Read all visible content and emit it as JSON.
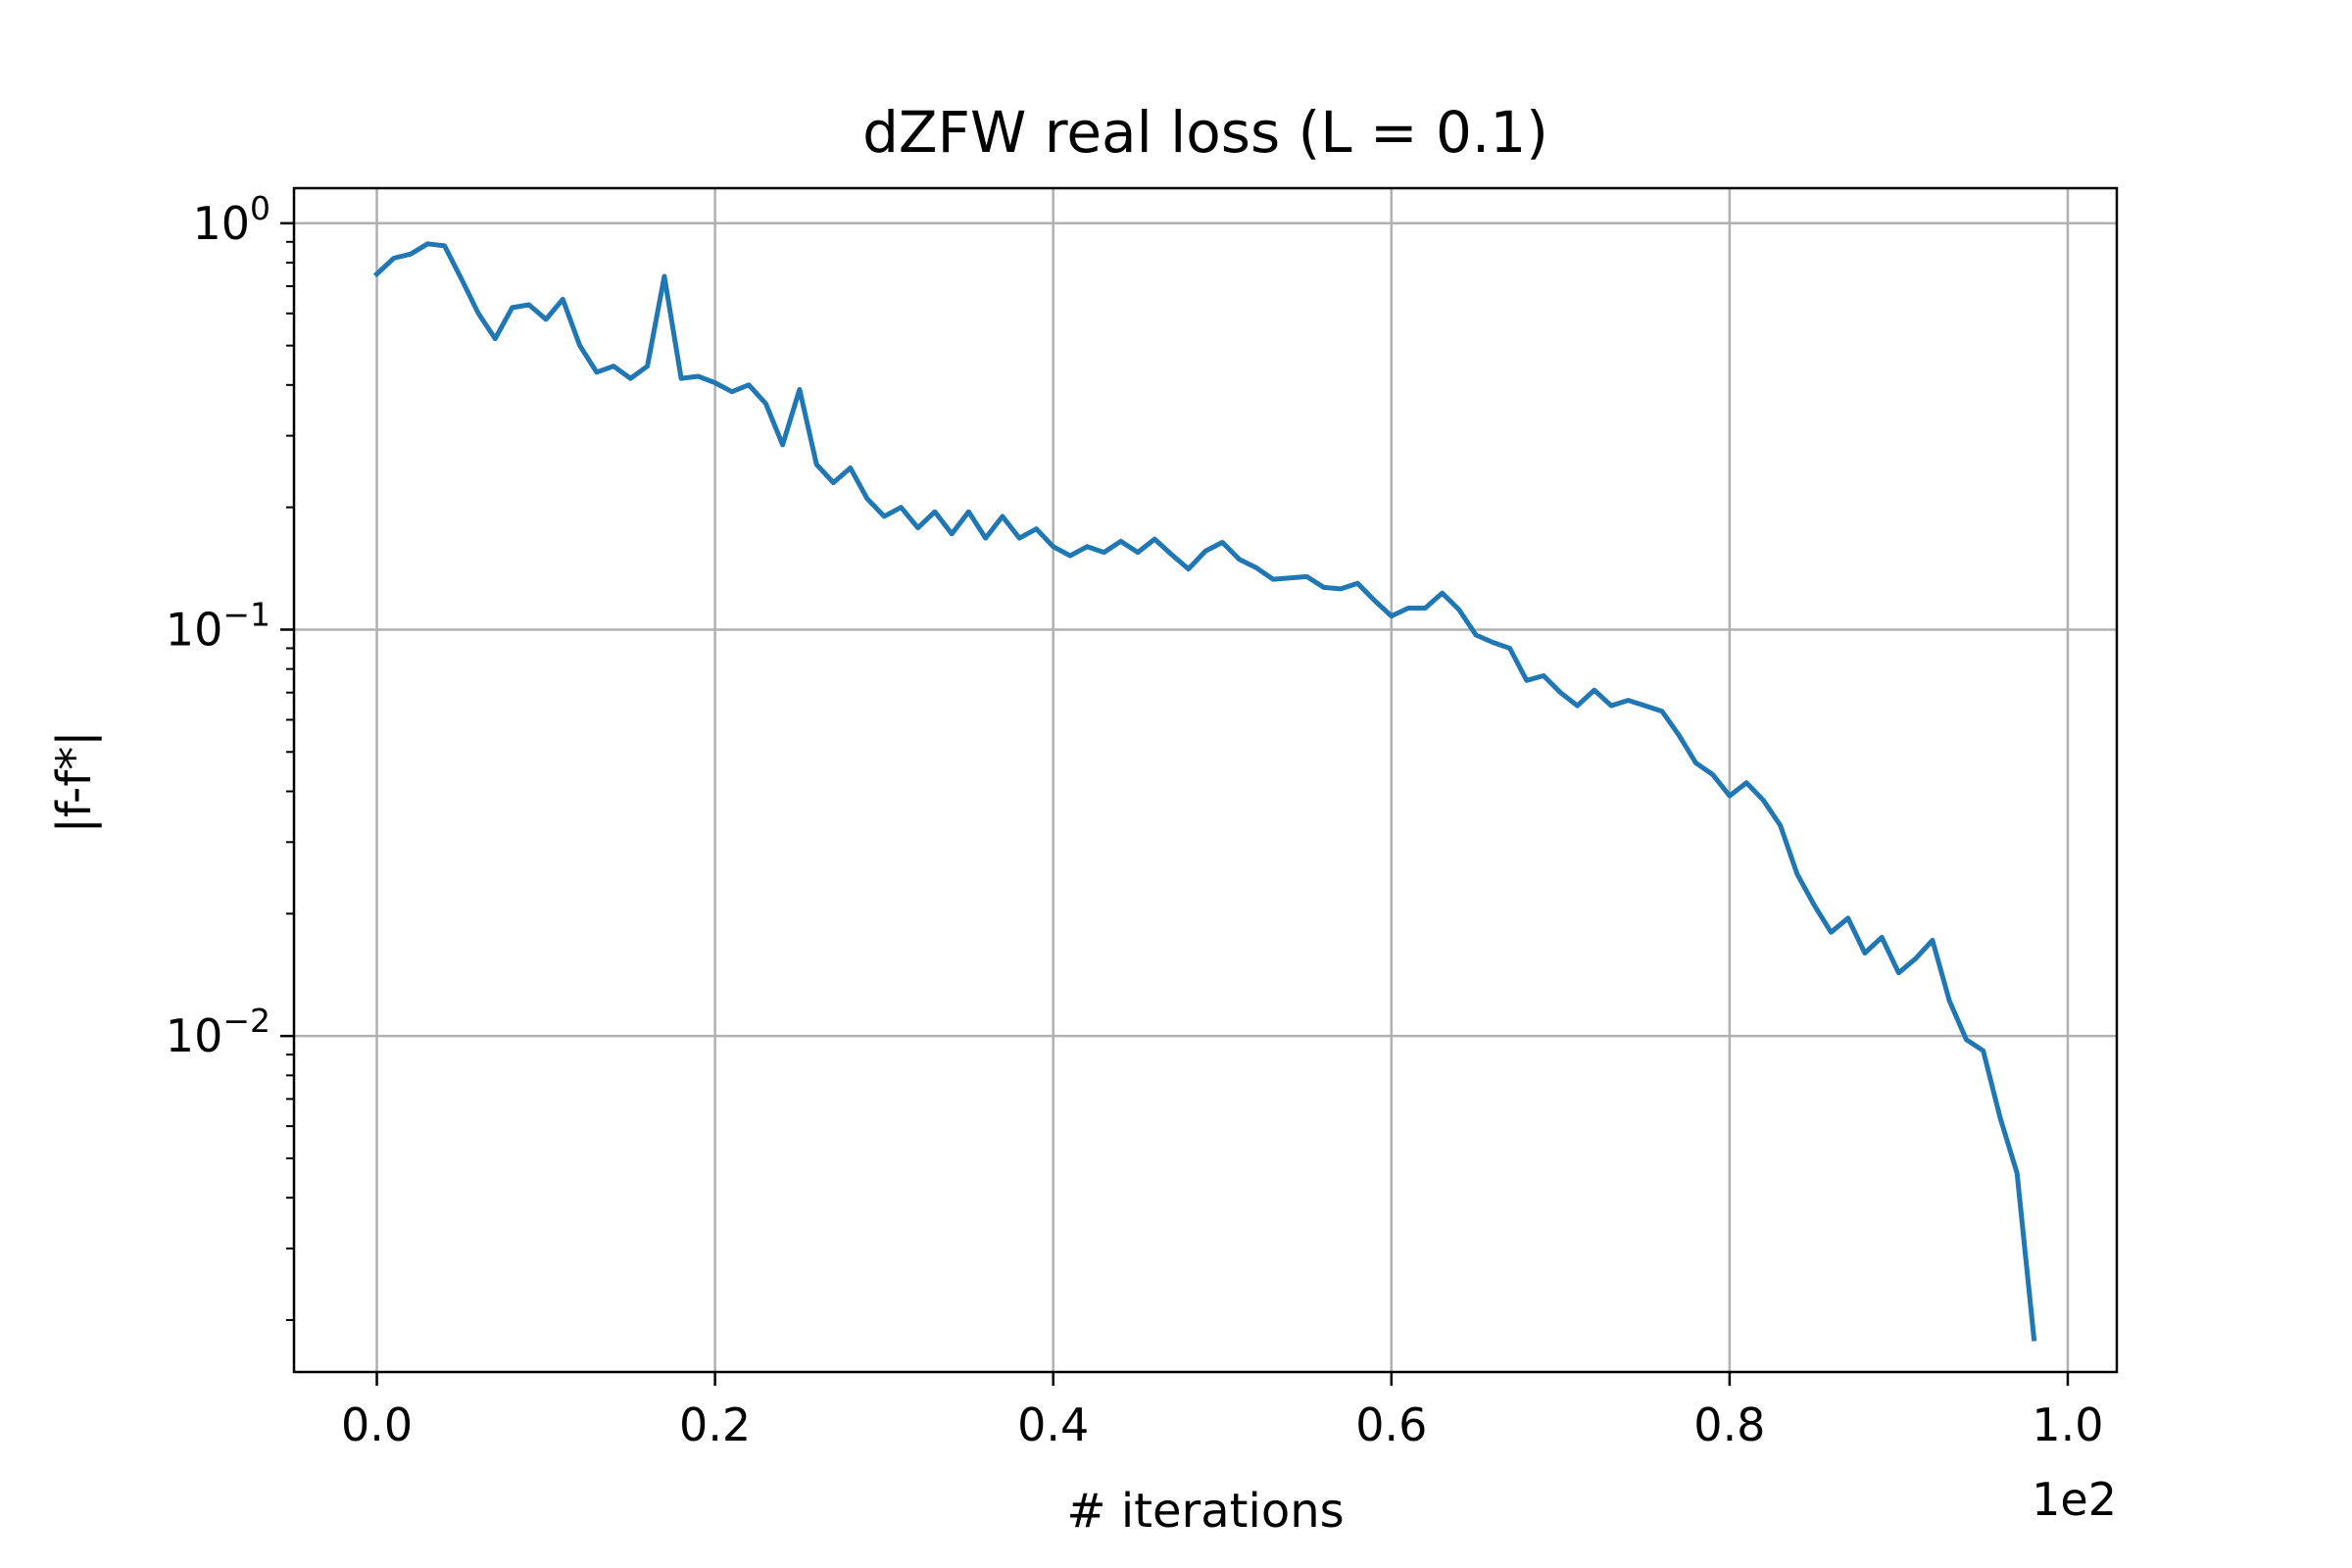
{
  "chart_data": {
    "type": "line",
    "title": "dZFW real loss (L = 0.1)",
    "xlabel": "# iterations",
    "ylabel": "|f-f*|",
    "x_offset_text": "1e2",
    "xlim": [
      -0.049,
      1.029
    ],
    "x_ticks": [
      {
        "value": 0.0,
        "label": "0.0"
      },
      {
        "value": 0.2,
        "label": "0.2"
      },
      {
        "value": 0.4,
        "label": "0.4"
      },
      {
        "value": 0.6,
        "label": "0.6"
      },
      {
        "value": 0.8,
        "label": "0.8"
      },
      {
        "value": 1.0,
        "label": "1.0"
      }
    ],
    "y_scale": "log",
    "ylim": [
      0.00149,
      1.22
    ],
    "y_ticks": [
      {
        "value": 1,
        "base": "10",
        "exp": "0"
      },
      {
        "value": 0.1,
        "base": "10",
        "exp": "−1"
      },
      {
        "value": 0.01,
        "base": "10",
        "exp": "−2"
      }
    ],
    "grid": true,
    "line_color": "#1f77b4",
    "series": [
      {
        "x": [
          0.0,
          0.01,
          0.02,
          0.03,
          0.04,
          0.05,
          0.06,
          0.07,
          0.08,
          0.09,
          0.1,
          0.11,
          0.12,
          0.13,
          0.14,
          0.15,
          0.16,
          0.17,
          0.18,
          0.19,
          0.2,
          0.21,
          0.22,
          0.23,
          0.24,
          0.25,
          0.26,
          0.27,
          0.28,
          0.29,
          0.3,
          0.31,
          0.32,
          0.33,
          0.34,
          0.35,
          0.36,
          0.37,
          0.38,
          0.39,
          0.4,
          0.41,
          0.42,
          0.43,
          0.44,
          0.45,
          0.46,
          0.47,
          0.48,
          0.49,
          0.5,
          0.51,
          0.52,
          0.53,
          0.54,
          0.55,
          0.56,
          0.57,
          0.58,
          0.59,
          0.6,
          0.61,
          0.62,
          0.63,
          0.64,
          0.65,
          0.66,
          0.67,
          0.68,
          0.69,
          0.7,
          0.71,
          0.72,
          0.73,
          0.74,
          0.75,
          0.76,
          0.77,
          0.78,
          0.79,
          0.8,
          0.81,
          0.82,
          0.83,
          0.84,
          0.85,
          0.86,
          0.87,
          0.88,
          0.89,
          0.9,
          0.91,
          0.92,
          0.93,
          0.94,
          0.95,
          0.96,
          0.97,
          0.98
        ],
        "y": [
          0.75,
          0.82,
          0.84,
          0.89,
          0.88,
          0.73,
          0.6,
          0.52,
          0.62,
          0.63,
          0.58,
          0.65,
          0.5,
          0.43,
          0.445,
          0.415,
          0.445,
          0.74,
          0.415,
          0.42,
          0.405,
          0.385,
          0.4,
          0.36,
          0.285,
          0.39,
          0.255,
          0.23,
          0.25,
          0.21,
          0.19,
          0.2,
          0.178,
          0.195,
          0.172,
          0.195,
          0.168,
          0.19,
          0.168,
          0.177,
          0.16,
          0.152,
          0.16,
          0.155,
          0.165,
          0.155,
          0.167,
          0.153,
          0.141,
          0.156,
          0.164,
          0.149,
          0.142,
          0.133,
          0.134,
          0.135,
          0.127,
          0.126,
          0.13,
          0.118,
          0.108,
          0.113,
          0.113,
          0.123,
          0.112,
          0.097,
          0.093,
          0.09,
          0.075,
          0.077,
          0.07,
          0.065,
          0.071,
          0.065,
          0.067,
          0.065,
          0.063,
          0.055,
          0.047,
          0.044,
          0.039,
          0.042,
          0.038,
          0.033,
          0.025,
          0.021,
          0.018,
          0.0195,
          0.016,
          0.0175,
          0.0143,
          0.0155,
          0.0172,
          0.0122,
          0.0098,
          0.0092,
          0.0063,
          0.0046,
          0.0018
        ]
      }
    ]
  }
}
